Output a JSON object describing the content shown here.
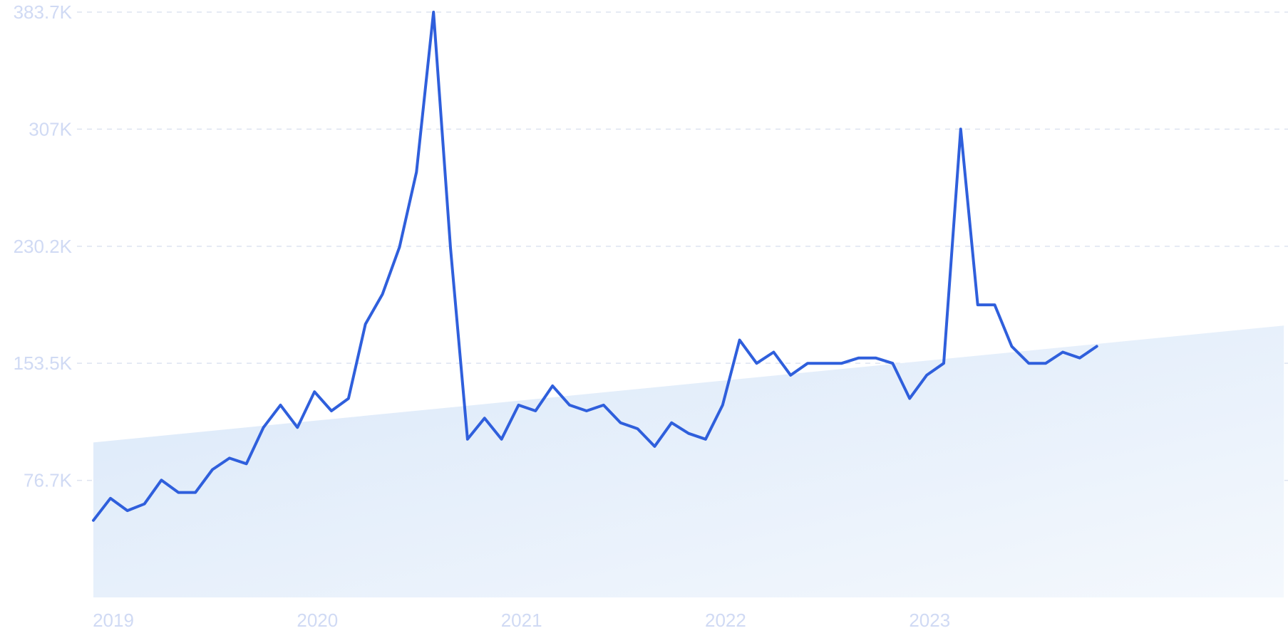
{
  "colors": {
    "line": "#2f5fdc",
    "tick_text": "#d0daf4",
    "grid": "#dde3f0",
    "trend_fill_start": "#dae8f9",
    "trend_fill_end": "#f4f8fd"
  },
  "chart_data": {
    "type": "line",
    "title": "",
    "xlabel": "",
    "ylabel": "",
    "ylim": [
      0,
      383700
    ],
    "grid": true,
    "legend": "none",
    "y_ticks": [
      {
        "value": 76700,
        "label": "76.7K"
      },
      {
        "value": 153500,
        "label": "153.5K"
      },
      {
        "value": 230200,
        "label": "230.2K"
      },
      {
        "value": 307000,
        "label": "307K"
      },
      {
        "value": 383700,
        "label": "383.7K"
      }
    ],
    "x_ticks": [
      {
        "value": "2019-01",
        "label": "2019"
      },
      {
        "value": "2020-01",
        "label": "2020"
      },
      {
        "value": "2021-01",
        "label": "2021"
      },
      {
        "value": "2022-01",
        "label": "2022"
      },
      {
        "value": "2023-01",
        "label": "2023"
      }
    ],
    "trend": {
      "from": {
        "x": "2019-01",
        "y": 101600
      },
      "to": {
        "x": "2024-11",
        "y": 178200
      }
    },
    "series": [
      {
        "points": [
          [
            "2019-01",
            50500
          ],
          [
            "2019-02",
            65000
          ],
          [
            "2019-03",
            56900
          ],
          [
            "2019-04",
            61300
          ],
          [
            "2019-05",
            76900
          ],
          [
            "2019-06",
            68800
          ],
          [
            "2019-07",
            68800
          ],
          [
            "2019-08",
            83800
          ],
          [
            "2019-09",
            91300
          ],
          [
            "2019-10",
            87600
          ],
          [
            "2019-11",
            111400
          ],
          [
            "2019-12",
            126100
          ],
          [
            "2020-01",
            111400
          ],
          [
            "2020-02",
            134800
          ],
          [
            "2020-03",
            122300
          ],
          [
            "2020-04",
            130400
          ],
          [
            "2020-05",
            179200
          ],
          [
            "2020-06",
            198800
          ],
          [
            "2020-07",
            229700
          ],
          [
            "2020-08",
            278900
          ],
          [
            "2020-09",
            383700
          ],
          [
            "2020-10",
            229300
          ],
          [
            "2020-11",
            103700
          ],
          [
            "2020-12",
            117500
          ],
          [
            "2021-01",
            103700
          ],
          [
            "2021-02",
            126100
          ],
          [
            "2021-03",
            122300
          ],
          [
            "2021-04",
            138700
          ],
          [
            "2021-05",
            126100
          ],
          [
            "2021-06",
            122300
          ],
          [
            "2021-07",
            126100
          ],
          [
            "2021-08",
            114500
          ],
          [
            "2021-09",
            110600
          ],
          [
            "2021-10",
            99000
          ],
          [
            "2021-11",
            114500
          ],
          [
            "2021-12",
            107500
          ],
          [
            "2022-01",
            103700
          ],
          [
            "2022-02",
            126100
          ],
          [
            "2022-03",
            168700
          ],
          [
            "2022-04",
            153500
          ],
          [
            "2022-05",
            160800
          ],
          [
            "2022-06",
            145700
          ],
          [
            "2022-07",
            153500
          ],
          [
            "2022-08",
            153500
          ],
          [
            "2022-09",
            153500
          ],
          [
            "2022-10",
            157000
          ],
          [
            "2022-11",
            157000
          ],
          [
            "2022-12",
            153500
          ],
          [
            "2023-01",
            130400
          ],
          [
            "2023-02",
            145700
          ],
          [
            "2023-03",
            153500
          ],
          [
            "2023-04",
            307000
          ],
          [
            "2023-05",
            191800
          ],
          [
            "2023-06",
            191800
          ],
          [
            "2023-07",
            164600
          ],
          [
            "2023-08",
            153500
          ],
          [
            "2023-09",
            153500
          ],
          [
            "2023-10",
            160800
          ],
          [
            "2023-11",
            157000
          ],
          [
            "2023-12",
            164600
          ]
        ]
      }
    ]
  }
}
